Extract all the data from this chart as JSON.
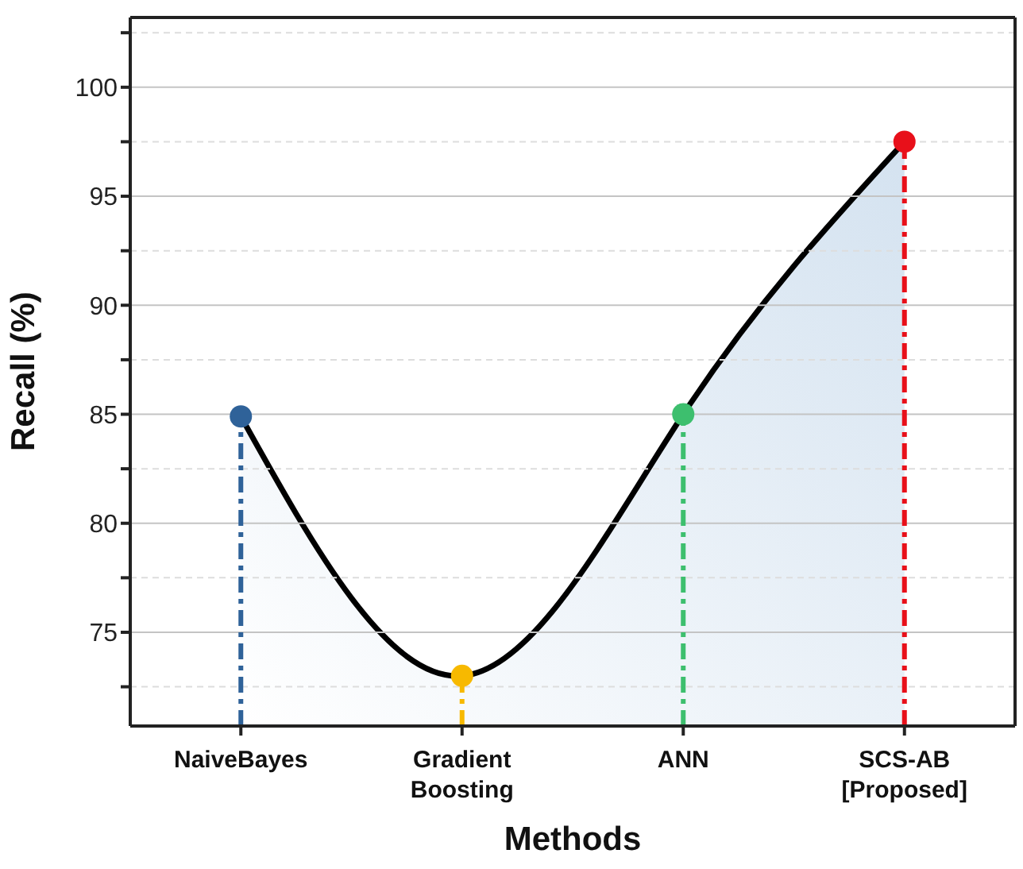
{
  "chart_data": {
    "type": "area",
    "xlabel": "Methods",
    "ylabel": "Recall (%)",
    "categories": [
      "NaiveBayes",
      "Gradient Boosting",
      "ANN",
      "SCS-AB [Proposed]"
    ],
    "series": [
      {
        "color": "#000000",
        "values": [
          84.9,
          73.0,
          85.0,
          97.5
        ],
        "line_style": "solid"
      },
      {
        "type": "lollipop",
        "colors": [
          "#2f6299",
          "#f7b900",
          "#3dbf6e",
          "#e8101a"
        ],
        "values": [
          84.9,
          73.0,
          85.0,
          97.5
        ],
        "line_style": "dashed",
        "marker": "circle"
      }
    ],
    "ylim": [
      70.7,
      103.2
    ],
    "yticks": [
      {
        "value": 72.5,
        "label": null
      },
      75,
      {
        "value": 77.5,
        "label": null
      },
      80,
      {
        "value": 82.5,
        "label": null
      },
      85,
      {
        "value": 87.5,
        "label": null
      },
      90,
      {
        "value": 92.5,
        "label": null
      },
      95,
      {
        "value": 97.5,
        "label": null
      },
      100,
      {
        "value": 102.5,
        "label": null
      }
    ],
    "grid": "y"
  }
}
